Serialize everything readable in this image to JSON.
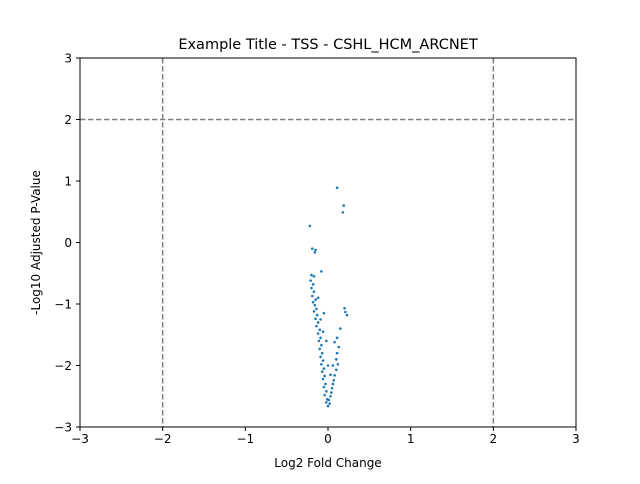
{
  "chart_data": {
    "type": "scatter",
    "title": "Example Title - TSS - CSHL_HCM_ARCNET",
    "xlabel": "Log2 Fold Change",
    "ylabel": "-Log10 Adjusted P-Value",
    "xlim": [
      -3,
      3
    ],
    "ylim": [
      -3,
      3
    ],
    "xticks": [
      "−3",
      "−2",
      "−1",
      "0",
      "1",
      "2",
      "3"
    ],
    "yticks": [
      "−3",
      "−2",
      "−1",
      "0",
      "1",
      "2",
      "3"
    ],
    "grid": false,
    "legend": "none",
    "series": [
      {
        "color": "#1f77b4",
        "points": [
          [
            0.11,
            0.89
          ],
          [
            0.19,
            0.6
          ],
          [
            0.18,
            0.49
          ],
          [
            -0.22,
            0.27
          ],
          [
            -0.19,
            -0.1
          ],
          [
            -0.15,
            -0.12
          ],
          [
            -0.16,
            -0.16
          ],
          [
            -0.08,
            -0.47
          ],
          [
            -0.2,
            -0.53
          ],
          [
            -0.17,
            -0.55
          ],
          [
            -0.21,
            -0.62
          ],
          [
            -0.18,
            -0.68
          ],
          [
            -0.2,
            -0.74
          ],
          [
            -0.17,
            -0.8
          ],
          [
            -0.19,
            -0.87
          ],
          [
            -0.15,
            -0.93
          ],
          [
            -0.18,
            -0.97
          ],
          [
            -0.16,
            -1.02
          ],
          [
            -0.14,
            -1.08
          ],
          [
            -0.17,
            -1.12
          ],
          [
            -0.13,
            -1.18
          ],
          [
            -0.15,
            -1.24
          ],
          [
            -0.12,
            -1.3
          ],
          [
            -0.14,
            -1.36
          ],
          [
            -0.1,
            -1.42
          ],
          [
            -0.12,
            -1.48
          ],
          [
            -0.09,
            -1.55
          ],
          [
            -0.11,
            -1.6
          ],
          [
            -0.08,
            -1.67
          ],
          [
            -0.1,
            -1.73
          ],
          [
            -0.07,
            -1.8
          ],
          [
            -0.09,
            -1.86
          ],
          [
            -0.06,
            -1.92
          ],
          [
            -0.08,
            -1.98
          ],
          [
            -0.05,
            -2.05
          ],
          [
            -0.07,
            -2.1
          ],
          [
            -0.04,
            -2.17
          ],
          [
            -0.06,
            -2.22
          ],
          [
            -0.03,
            -2.3
          ],
          [
            -0.05,
            -2.35
          ],
          [
            -0.02,
            -2.42
          ],
          [
            -0.04,
            -2.48
          ],
          [
            -0.01,
            -2.55
          ],
          [
            -0.02,
            -2.6
          ],
          [
            0.0,
            -2.66
          ],
          [
            0.02,
            -2.62
          ],
          [
            0.01,
            -2.56
          ],
          [
            0.03,
            -2.5
          ],
          [
            0.04,
            -2.44
          ],
          [
            0.05,
            -2.37
          ],
          [
            0.06,
            -2.3
          ],
          [
            0.07,
            -2.24
          ],
          [
            0.08,
            -2.16
          ],
          [
            0.1,
            -2.07
          ],
          [
            0.12,
            -1.98
          ],
          [
            0.1,
            -1.9
          ],
          [
            0.11,
            -1.8
          ],
          [
            0.13,
            -1.7
          ],
          [
            0.08,
            -1.62
          ],
          [
            0.11,
            -1.55
          ],
          [
            0.15,
            -1.4
          ],
          [
            0.2,
            -1.07
          ],
          [
            0.21,
            -1.13
          ],
          [
            0.23,
            -1.18
          ],
          [
            -0.05,
            -1.15
          ],
          [
            -0.02,
            -1.6
          ],
          [
            0.0,
            -2.0
          ],
          [
            0.03,
            -2.15
          ],
          [
            -0.12,
            -0.9
          ],
          [
            -0.09,
            -1.25
          ],
          [
            -0.06,
            -1.45
          ],
          [
            0.06,
            -2.0
          ]
        ]
      }
    ],
    "reference_lines": {
      "vertical_x": [
        -2,
        2
      ],
      "horizontal_y": [
        2
      ]
    }
  }
}
